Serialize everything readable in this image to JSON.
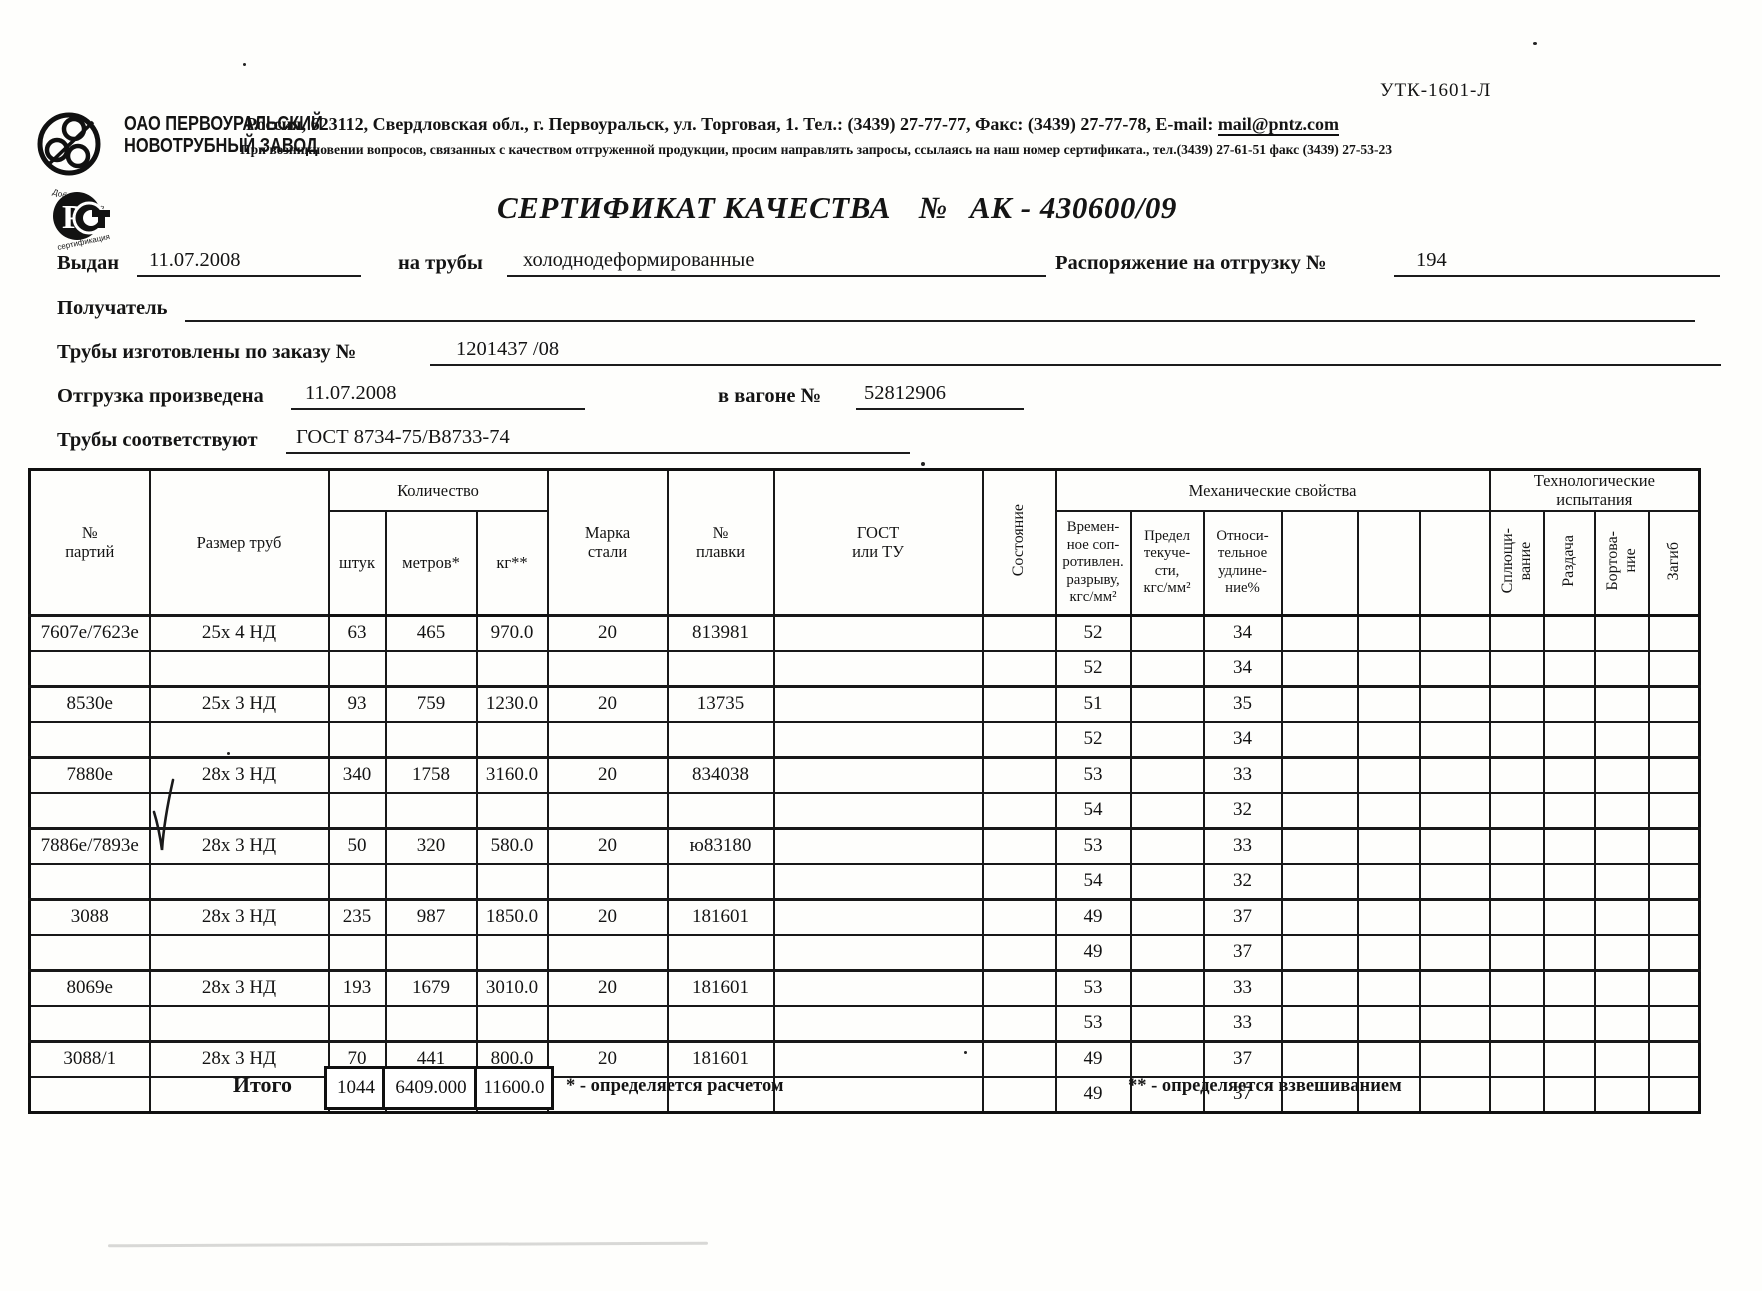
{
  "page": {
    "form_code": "УТК-1601-Л",
    "company": {
      "name_line1": "ОАО ПЕРВОУРАЛЬСКИЙ",
      "name_line2": "НОВОТРУБНЫЙ ЗАВОД",
      "address_line1": "Россия, 623112, Свердловская обл., г. Первоуральск, ул. Торговая, 1. Тел.: (3439) 27-77-77, Факс: (3439) 27-77-78,  E-mail:",
      "email": "mail@pntz.com",
      "address_line2": "При возникновении вопросов, связанных с качеством отгруженной продукции, просим направлять запросы, ссылаясь на наш номер сертификата., тел.(3439) 27-61-51 факс (3439) 27-53-23"
    },
    "stamp_text": "РСТ",
    "title": "СЕРТИФИКАТ КАЧЕСТВА",
    "title_number_label": "№",
    "certificate_number": "АК - 430600/09"
  },
  "form": {
    "issued_label": "Выдан",
    "issued_value": "11.07.2008",
    "pipes_label": "на трубы",
    "pipes_value": "холоднодеформированные",
    "shipping_order_label": "Распоряжение на отгрузку №",
    "shipping_order_value": "194",
    "receiver_label": "Получатель",
    "receiver_value": "",
    "order_label": "Трубы изготовлены по заказу №",
    "order_value": "1201437  /08",
    "shipped_label": "Отгрузка произведена",
    "shipped_value": "11.07.2008",
    "wagon_label": "в вагоне №",
    "wagon_value": "52812906",
    "standard_label": "Трубы соответствуют",
    "standard_value": "ГОСТ 8734-75/В8733-74"
  },
  "table": {
    "headers": {
      "batch": "№\nпартий",
      "size": "Размер труб",
      "qty_group": "Количество",
      "pcs": "штук",
      "meters": "метров*",
      "kg": "кг**",
      "steel": "Марка\nстали",
      "melt": "№\nплавки",
      "gost": "ГОСТ\nили ТУ",
      "state": "Состояние",
      "mech_group": "Механические свойства",
      "tensile": "Времен-\nное соп-\nротивлен.\nразрыву,\nкгс/мм²",
      "yield_strength": "Предел\nтекуче-\nсти,\nкгс/мм²",
      "elongation": "Относи-\nтельное\nудлине-\nние%",
      "tech_group": "Технологические\nиспытания",
      "flattening": "Сплющи-\nвание",
      "expansion": "Раздача",
      "flanging": "Бортова-\nние",
      "bend": "Загиб"
    },
    "rows": [
      [
        "7607е/7623е",
        "25х 4 НД",
        "63",
        "465",
        "970.0",
        "20",
        "813981",
        "",
        "",
        "52",
        "",
        "34",
        "",
        "",
        "",
        "",
        "",
        "",
        ""
      ],
      [
        "",
        "",
        "",
        "",
        "",
        "",
        "",
        "",
        "",
        "52",
        "",
        "34",
        "",
        "",
        "",
        "",
        "",
        "",
        ""
      ],
      [
        "8530е",
        "25х 3 НД",
        "93",
        "759",
        "1230.0",
        "20",
        "13735",
        "",
        "",
        "51",
        "",
        "35",
        "",
        "",
        "",
        "",
        "",
        "",
        ""
      ],
      [
        "",
        "",
        "",
        "",
        "",
        "",
        "",
        "",
        "",
        "52",
        "",
        "34",
        "",
        "",
        "",
        "",
        "",
        "",
        ""
      ],
      [
        "7880е",
        "28х 3 НД",
        "340",
        "1758",
        "3160.0",
        "20",
        "834038",
        "",
        "",
        "53",
        "",
        "33",
        "",
        "",
        "",
        "",
        "",
        "",
        ""
      ],
      [
        "",
        "",
        "",
        "",
        "",
        "",
        "",
        "",
        "",
        "54",
        "",
        "32",
        "",
        "",
        "",
        "",
        "",
        "",
        ""
      ],
      [
        "7886е/7893е",
        "28х 3 НД",
        "50",
        "320",
        "580.0",
        "20",
        "ю83180",
        "",
        "",
        "53",
        "",
        "33",
        "",
        "",
        "",
        "",
        "",
        "",
        ""
      ],
      [
        "",
        "",
        "",
        "",
        "",
        "",
        "",
        "",
        "",
        "54",
        "",
        "32",
        "",
        "",
        "",
        "",
        "",
        "",
        ""
      ],
      [
        "3088",
        "28х 3 НД",
        "235",
        "987",
        "1850.0",
        "20",
        "181601",
        "",
        "",
        "49",
        "",
        "37",
        "",
        "",
        "",
        "",
        "",
        "",
        ""
      ],
      [
        "",
        "",
        "",
        "",
        "",
        "",
        "",
        "",
        "",
        "49",
        "",
        "37",
        "",
        "",
        "",
        "",
        "",
        "",
        ""
      ],
      [
        "8069е",
        "28х 3 НД",
        "193",
        "1679",
        "3010.0",
        "20",
        "181601",
        "",
        "",
        "53",
        "",
        "33",
        "",
        "",
        "",
        "",
        "",
        "",
        ""
      ],
      [
        "",
        "",
        "",
        "",
        "",
        "",
        "",
        "",
        "",
        "53",
        "",
        "33",
        "",
        "",
        "",
        "",
        "",
        "",
        ""
      ],
      [
        "3088/1",
        "28х 3 НД",
        "70",
        "441",
        "800.0",
        "20",
        "181601",
        "",
        "",
        "49",
        "",
        "37",
        "",
        "",
        "",
        "",
        "",
        "",
        ""
      ],
      [
        "",
        "",
        "",
        "",
        "",
        "",
        "",
        "",
        "",
        "49",
        "",
        "37",
        "",
        "",
        "",
        "",
        "",
        "",
        ""
      ]
    ],
    "totals": {
      "label": "Итого",
      "pcs": "1044",
      "meters": "6409.000",
      "kg": "11600.0"
    },
    "footnotes": {
      "calc": "* - определяется расчетом",
      "weigh": "** - определяется взвешиванием"
    }
  }
}
